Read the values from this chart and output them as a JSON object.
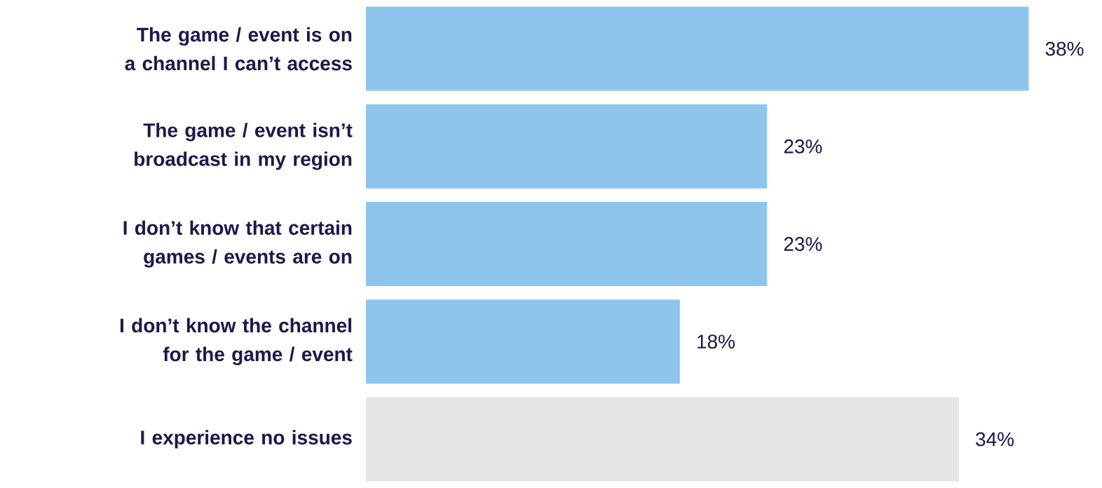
{
  "chart_data": {
    "type": "bar",
    "orientation": "horizontal",
    "categories": [
      "The game / event is on a channel I can’t access",
      "The game / event isn’t broadcast in my region",
      "I don’t know that certain games / events are on",
      "I don’t know the channel for the game / event",
      "I experience no issues"
    ],
    "values": [
      38,
      23,
      23,
      18,
      34
    ],
    "colors": [
      "#8ec5ec",
      "#8ec5ec",
      "#8ec5ec",
      "#8ec5ec",
      "#e5e5e5"
    ],
    "value_labels": [
      "38%",
      "23%",
      "23%",
      "18%",
      "34%"
    ]
  }
}
